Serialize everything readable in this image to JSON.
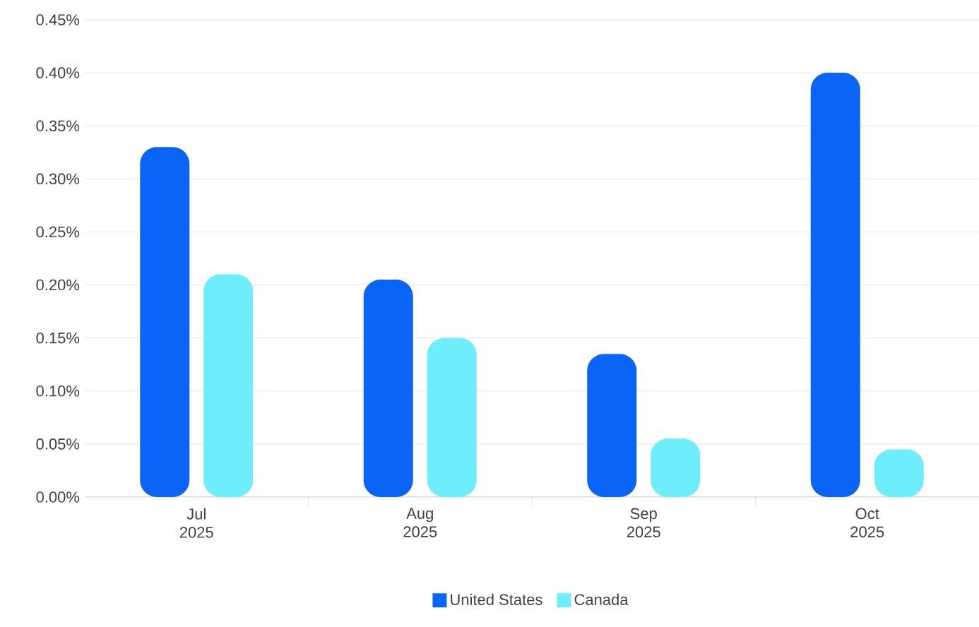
{
  "chart_data": {
    "type": "bar",
    "categories": [
      "Jul 2025",
      "Aug 2025",
      "Sep 2025",
      "Oct 2025"
    ],
    "series": [
      {
        "name": "United States",
        "color": "#0a64f5",
        "values": [
          0.33,
          0.205,
          0.135,
          0.4
        ]
      },
      {
        "name": "Canada",
        "color": "#6eeefc",
        "values": [
          0.21,
          0.15,
          0.055,
          0.045
        ]
      }
    ],
    "ylim": [
      0,
      0.45
    ],
    "yticks": [
      {
        "value": 0,
        "label": "0.00%"
      },
      {
        "value": 0.05,
        "label": "0.05%"
      },
      {
        "value": 0.1,
        "label": "0.10%"
      },
      {
        "value": 0.15,
        "label": "0.15%"
      },
      {
        "value": 0.2,
        "label": "0.20%"
      },
      {
        "value": 0.25,
        "label": "0.25%"
      },
      {
        "value": 0.3,
        "label": "0.30%"
      },
      {
        "value": 0.35,
        "label": "0.35%"
      },
      {
        "value": 0.4,
        "label": "0.40%"
      },
      {
        "value": 0.45,
        "label": "0.45%"
      }
    ],
    "grid": "y",
    "legend": "bottom"
  }
}
